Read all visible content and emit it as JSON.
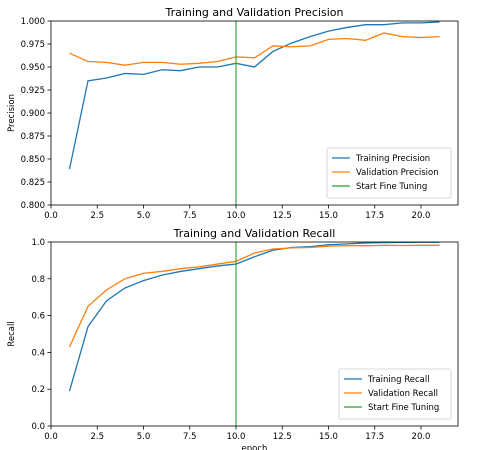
{
  "colors": {
    "train": "#1f77b4",
    "val": "#ff7f0e",
    "fine": "#2ca02c",
    "axis": "#000000",
    "legend_border": "#cccccc"
  },
  "chart_data": [
    {
      "type": "line",
      "title": "Training and Validation Precision",
      "xlabel": "",
      "ylabel": "Precision",
      "xlim": [
        0.0,
        22.0
      ],
      "ylim": [
        0.8,
        1.0
      ],
      "xticks": [
        0.0,
        2.5,
        5.0,
        7.5,
        10.0,
        12.5,
        15.0,
        17.5,
        20.0
      ],
      "xtick_labels": [
        "0.0",
        "2.5",
        "5.0",
        "7.5",
        "10.0",
        "12.5",
        "15.0",
        "17.5",
        "20.0"
      ],
      "yticks": [
        0.8,
        0.825,
        0.85,
        0.875,
        0.9,
        0.925,
        0.95,
        0.975,
        1.0
      ],
      "ytick_labels": [
        "0.800",
        "0.825",
        "0.850",
        "0.875",
        "0.900",
        "0.925",
        "0.950",
        "0.975",
        "1.000"
      ],
      "grid": false,
      "legend_position": "lower-right",
      "x": [
        1,
        2,
        3,
        4,
        5,
        6,
        7,
        8,
        9,
        10,
        11,
        12,
        13,
        14,
        15,
        16,
        17,
        18,
        19,
        20,
        21
      ],
      "series": [
        {
          "name": "Training Precision",
          "color_key": "train",
          "values": [
            0.839,
            0.935,
            0.938,
            0.943,
            0.942,
            0.947,
            0.946,
            0.95,
            0.95,
            0.954,
            0.95,
            0.967,
            0.976,
            0.983,
            0.989,
            0.993,
            0.996,
            0.996,
            0.998,
            0.998,
            0.999
          ]
        },
        {
          "name": "Validation Precision",
          "color_key": "val",
          "values": [
            0.965,
            0.956,
            0.955,
            0.952,
            0.955,
            0.955,
            0.953,
            0.954,
            0.956,
            0.961,
            0.96,
            0.973,
            0.972,
            0.973,
            0.98,
            0.981,
            0.979,
            0.987,
            0.983,
            0.982,
            0.983
          ]
        }
      ],
      "vline": {
        "name": "Start Fine Tuning",
        "x": 10,
        "color_key": "fine"
      }
    },
    {
      "type": "line",
      "title": "Training and Validation Recall",
      "xlabel": "epoch",
      "ylabel": "Recall",
      "xlim": [
        0.0,
        22.0
      ],
      "ylim": [
        0.0,
        1.0
      ],
      "xticks": [
        0.0,
        2.5,
        5.0,
        7.5,
        10.0,
        12.5,
        15.0,
        17.5,
        20.0
      ],
      "xtick_labels": [
        "0.0",
        "2.5",
        "5.0",
        "7.5",
        "10.0",
        "12.5",
        "15.0",
        "17.5",
        "20.0"
      ],
      "yticks": [
        0.0,
        0.2,
        0.4,
        0.6,
        0.8,
        1.0
      ],
      "ytick_labels": [
        "0.0",
        "0.2",
        "0.4",
        "0.6",
        "0.8",
        "1.0"
      ],
      "grid": false,
      "legend_position": "lower-right",
      "x": [
        1,
        2,
        3,
        4,
        5,
        6,
        7,
        8,
        9,
        10,
        11,
        12,
        13,
        14,
        15,
        16,
        17,
        18,
        19,
        20,
        21
      ],
      "series": [
        {
          "name": "Training Recall",
          "color_key": "train",
          "values": [
            0.19,
            0.54,
            0.68,
            0.75,
            0.79,
            0.82,
            0.84,
            0.855,
            0.87,
            0.88,
            0.92,
            0.955,
            0.97,
            0.975,
            0.985,
            0.99,
            0.995,
            0.997,
            0.998,
            0.999,
            0.999
          ]
        },
        {
          "name": "Validation Recall",
          "color_key": "val",
          "values": [
            0.43,
            0.65,
            0.74,
            0.8,
            0.83,
            0.84,
            0.855,
            0.865,
            0.88,
            0.895,
            0.94,
            0.962,
            0.968,
            0.97,
            0.978,
            0.98,
            0.98,
            0.982,
            0.981,
            0.982,
            0.982
          ]
        }
      ],
      "vline": {
        "name": "Start Fine Tuning",
        "x": 10,
        "color_key": "fine"
      }
    }
  ]
}
